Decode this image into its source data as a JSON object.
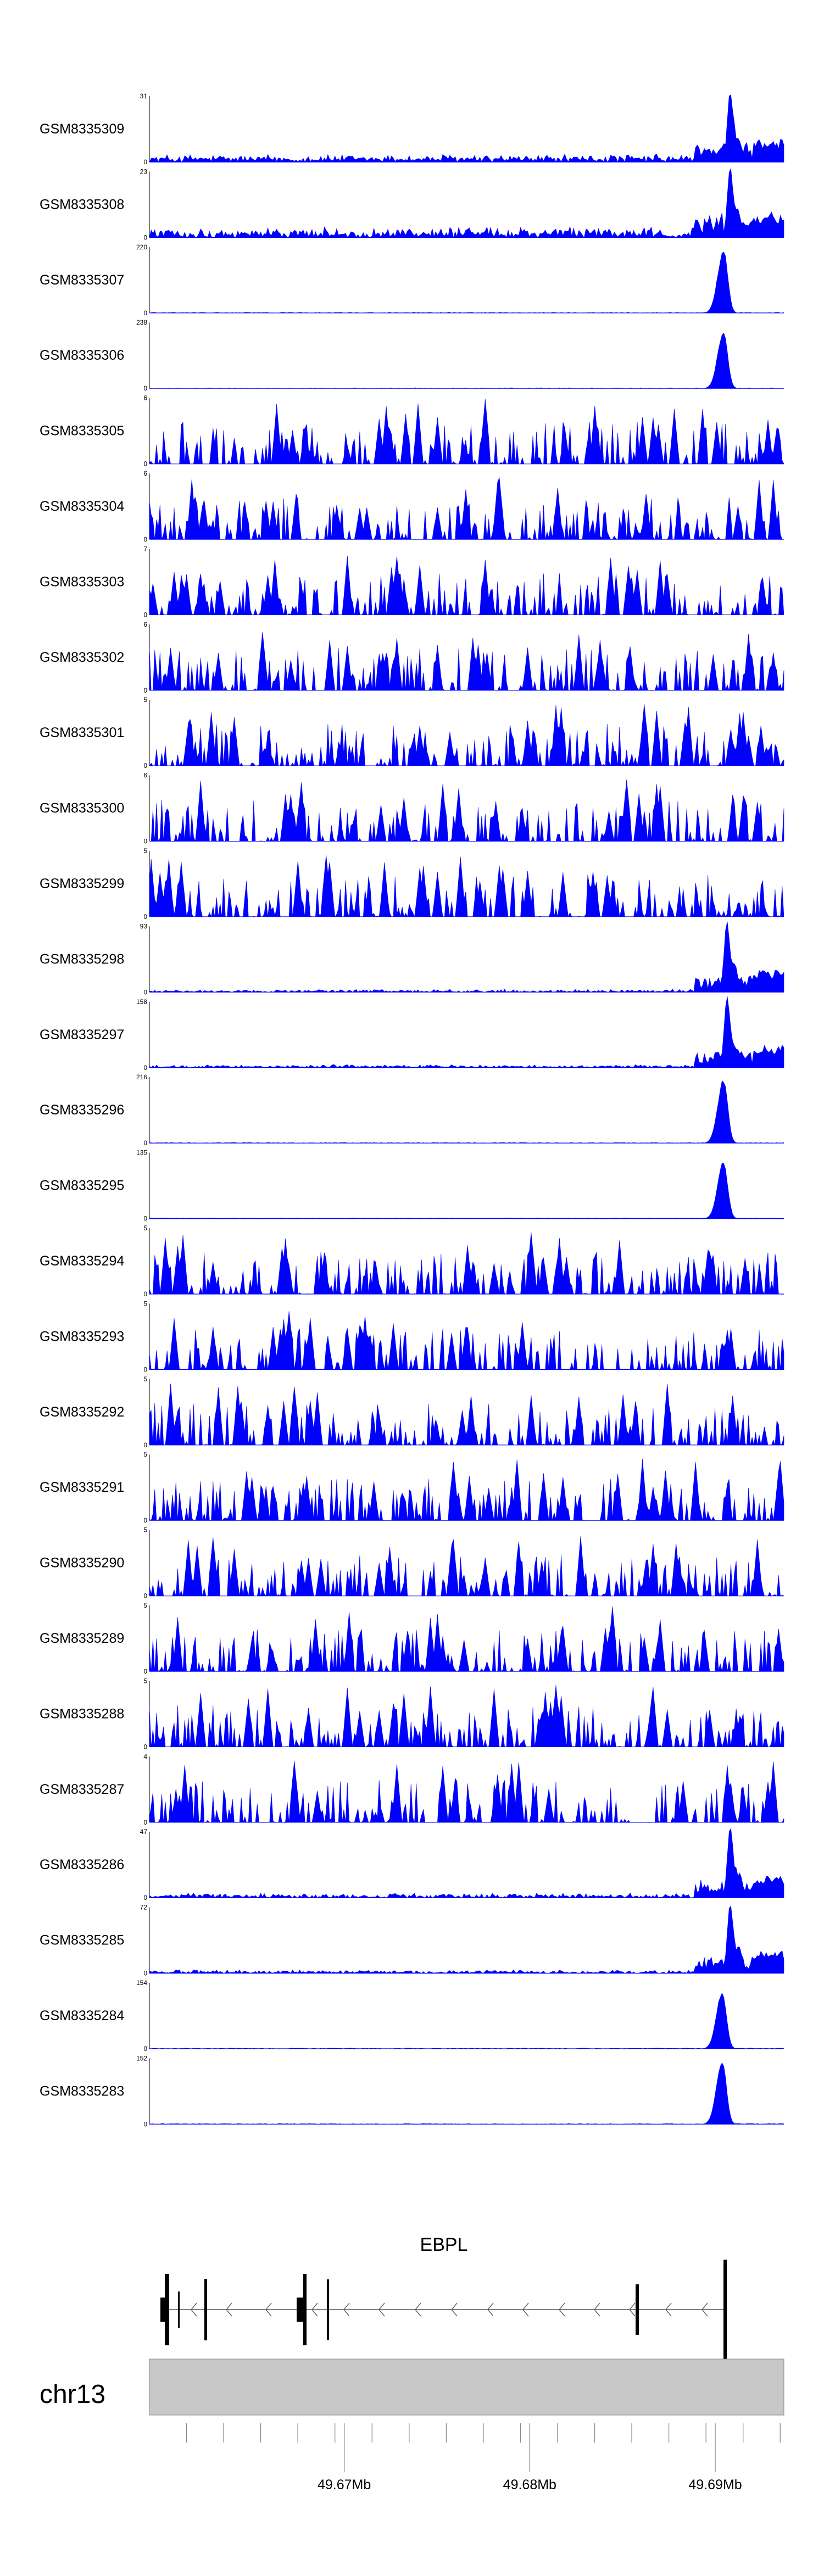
{
  "chart_data": {
    "type": "area",
    "colors": {
      "signal": "#0000ff",
      "axis": "#000000",
      "gene": "#000000",
      "ideogram": "#c8c8c8"
    },
    "tracks": [
      {
        "name": "GSM8335309",
        "ymax": 31,
        "ymin": 0,
        "profile": "noisy_peak",
        "peak_x": 0.915,
        "bg": 0.14,
        "peak": 1.0
      },
      {
        "name": "GSM8335308",
        "ymax": 23,
        "ymin": 0,
        "profile": "noisy_peak",
        "peak_x": 0.915,
        "bg": 0.18,
        "peak": 1.0
      },
      {
        "name": "GSM8335307",
        "ymax": 220,
        "ymin": 0,
        "profile": "clean_peak",
        "peak_x": 0.905,
        "bg": 0.01,
        "peak": 1.0
      },
      {
        "name": "GSM8335306",
        "ymax": 238,
        "ymin": 0,
        "profile": "clean_peak",
        "peak_x": 0.905,
        "bg": 0.01,
        "peak": 0.9
      },
      {
        "name": "GSM8335305",
        "ymax": 6,
        "ymin": 0,
        "profile": "sparse",
        "peak_x": 0.53,
        "bg": 0.3,
        "peak": 1.0
      },
      {
        "name": "GSM8335304",
        "ymax": 6,
        "ymin": 0,
        "profile": "sparse",
        "peak_x": 0.55,
        "bg": 0.3,
        "peak": 0.95
      },
      {
        "name": "GSM8335303",
        "ymax": 7,
        "ymin": 0,
        "profile": "sparse",
        "peak_x": 0.39,
        "bg": 0.3,
        "peak": 0.9
      },
      {
        "name": "GSM8335302",
        "ymax": 6,
        "ymin": 0,
        "profile": "sparse",
        "peak_x": 0.18,
        "bg": 0.3,
        "peak": 0.9
      },
      {
        "name": "GSM8335301",
        "ymax": 5,
        "ymin": 0,
        "profile": "sparse",
        "peak_x": 0.78,
        "bg": 0.3,
        "peak": 0.95
      },
      {
        "name": "GSM8335300",
        "ymax": 6,
        "ymin": 0,
        "profile": "sparse",
        "peak_x": 0.75,
        "bg": 0.3,
        "peak": 0.95
      },
      {
        "name": "GSM8335299",
        "ymax": 5,
        "ymin": 0,
        "profile": "sparse",
        "peak_x": 0.28,
        "bg": 0.3,
        "peak": 0.95
      },
      {
        "name": "GSM8335298",
        "ymax": 93,
        "ymin": 0,
        "profile": "noisy_peak",
        "peak_x": 0.91,
        "bg": 0.05,
        "peak": 1.0
      },
      {
        "name": "GSM8335297",
        "ymax": 158,
        "ymin": 0,
        "profile": "noisy_peak",
        "peak_x": 0.91,
        "bg": 0.05,
        "peak": 1.0
      },
      {
        "name": "GSM8335296",
        "ymax": 216,
        "ymin": 0,
        "profile": "clean_peak",
        "peak_x": 0.905,
        "bg": 0.01,
        "peak": 1.0
      },
      {
        "name": "GSM8335295",
        "ymax": 135,
        "ymin": 0,
        "profile": "clean_peak",
        "peak_x": 0.905,
        "bg": 0.01,
        "peak": 0.9
      },
      {
        "name": "GSM8335294",
        "ymax": 5,
        "ymin": 0,
        "profile": "sparse",
        "peak_x": 0.6,
        "bg": 0.3,
        "peak": 0.95
      },
      {
        "name": "GSM8335293",
        "ymax": 5,
        "ymin": 0,
        "profile": "sparse",
        "peak_x": 0.22,
        "bg": 0.3,
        "peak": 0.9
      },
      {
        "name": "GSM8335292",
        "ymax": 5,
        "ymin": 0,
        "profile": "sparse",
        "peak_x": 0.23,
        "bg": 0.3,
        "peak": 0.9
      },
      {
        "name": "GSM8335291",
        "ymax": 5,
        "ymin": 0,
        "profile": "sparse",
        "peak_x": 0.48,
        "bg": 0.3,
        "peak": 0.9
      },
      {
        "name": "GSM8335290",
        "ymax": 5,
        "ymin": 0,
        "profile": "sparse",
        "peak_x": 0.1,
        "bg": 0.3,
        "peak": 0.9
      },
      {
        "name": "GSM8335289",
        "ymax": 5,
        "ymin": 0,
        "profile": "sparse",
        "peak_x": 0.73,
        "bg": 0.25,
        "peak": 1.0
      },
      {
        "name": "GSM8335288",
        "ymax": 5,
        "ymin": 0,
        "profile": "sparse",
        "peak_x": 0.64,
        "bg": 0.35,
        "peak": 0.95
      },
      {
        "name": "GSM8335287",
        "ymax": 4,
        "ymin": 0,
        "profile": "sparse",
        "peak_x": 0.23,
        "bg": 0.35,
        "peak": 0.95
      },
      {
        "name": "GSM8335286",
        "ymax": 47,
        "ymin": 0,
        "profile": "noisy_peak",
        "peak_x": 0.915,
        "bg": 0.08,
        "peak": 1.0
      },
      {
        "name": "GSM8335285",
        "ymax": 72,
        "ymin": 0,
        "profile": "noisy_peak",
        "peak_x": 0.915,
        "bg": 0.06,
        "peak": 1.0
      },
      {
        "name": "GSM8335284",
        "ymax": 154,
        "ymin": 0,
        "profile": "clean_peak",
        "peak_x": 0.903,
        "bg": 0.01,
        "peak": 0.9
      },
      {
        "name": "GSM8335283",
        "ymax": 152,
        "ymin": 0,
        "profile": "clean_peak",
        "peak_x": 0.903,
        "bg": 0.01,
        "peak": 1.0
      }
    ],
    "gene": {
      "name": "EBPL",
      "strand": "-"
    },
    "chromosome": "chr13",
    "x_axis": {
      "unit": "Mb",
      "range": [
        49.6595,
        49.6937
      ],
      "labels": [
        {
          "value": 49.67,
          "text": "49.67Mb"
        },
        {
          "value": 49.68,
          "text": "49.68Mb"
        },
        {
          "value": 49.69,
          "text": "49.69Mb"
        }
      ],
      "minor_ticks": [
        49.6615,
        49.6635,
        49.6655,
        49.6675,
        49.6695,
        49.6715,
        49.6735,
        49.6755,
        49.6775,
        49.6795,
        49.6815,
        49.6835,
        49.6855,
        49.6875,
        49.6895,
        49.6915,
        49.6935
      ]
    }
  }
}
